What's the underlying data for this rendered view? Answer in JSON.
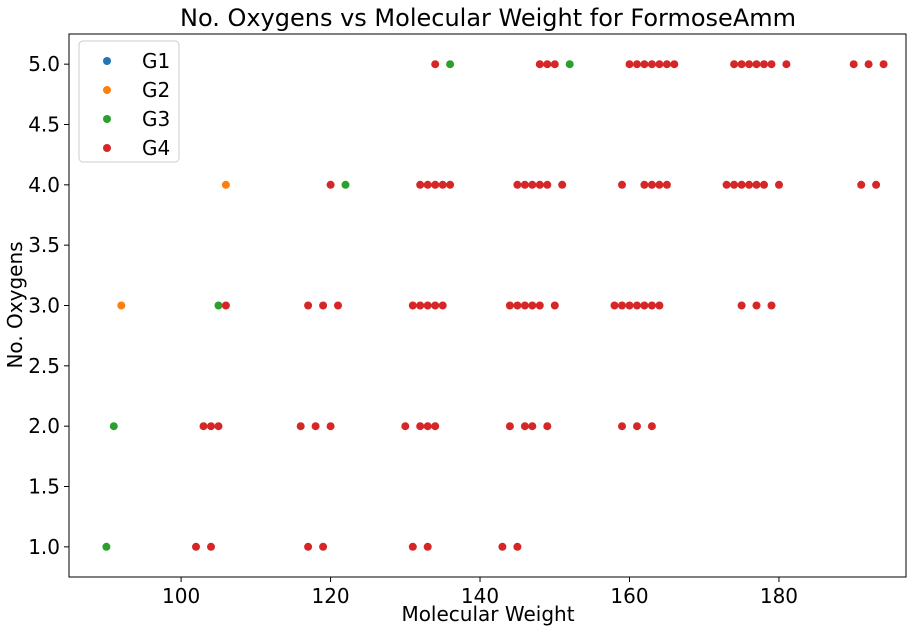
{
  "chart_data": {
    "type": "scatter",
    "title": "No. Oxygens vs Molecular Weight for FormoseAmm",
    "xlabel": "Molecular Weight",
    "ylabel": "No. Oxygens",
    "xlim": [
      85,
      197
    ],
    "ylim": [
      0.75,
      5.25
    ],
    "xticks": [
      100,
      120,
      140,
      160,
      180
    ],
    "yticks": [
      1.0,
      1.5,
      2.0,
      2.5,
      3.0,
      3.5,
      4.0,
      4.5,
      5.0
    ],
    "xtick_labels": [
      "100",
      "120",
      "140",
      "160",
      "180"
    ],
    "ytick_labels": [
      "1.0",
      "1.5",
      "2.0",
      "2.5",
      "3.0",
      "3.5",
      "4.0",
      "4.5",
      "5.0"
    ],
    "grid": false,
    "legend_position": "top-left",
    "series": [
      {
        "name": "G1",
        "color": "#1f77b4",
        "x": [],
        "y": []
      },
      {
        "name": "G2",
        "color": "#ff7f0e",
        "x": [
          92,
          106
        ],
        "y": [
          3,
          4
        ]
      },
      {
        "name": "G3",
        "color": "#2ca02c",
        "x": [
          90,
          91,
          105,
          122,
          136,
          152
        ],
        "y": [
          1,
          2,
          3,
          4,
          5,
          5
        ]
      },
      {
        "name": "G4",
        "color": "#d62728",
        "x": [
          102,
          104,
          117,
          119,
          131,
          133,
          143,
          145,
          103,
          104,
          105,
          116,
          118,
          120,
          130,
          132,
          133,
          134,
          144,
          146,
          147,
          149,
          159,
          161,
          163,
          106,
          117,
          119,
          121,
          131,
          132,
          133,
          134,
          135,
          144,
          145,
          146,
          147,
          148,
          150,
          158,
          159,
          160,
          161,
          162,
          163,
          164,
          175,
          177,
          179,
          120,
          132,
          133,
          134,
          135,
          136,
          145,
          146,
          147,
          148,
          149,
          151,
          159,
          162,
          163,
          164,
          165,
          173,
          174,
          175,
          176,
          177,
          178,
          180,
          191,
          193,
          134,
          148,
          149,
          150,
          160,
          161,
          162,
          163,
          164,
          165,
          166,
          174,
          175,
          176,
          177,
          178,
          179,
          181,
          190,
          192,
          194
        ],
        "y": [
          1,
          1,
          1,
          1,
          1,
          1,
          1,
          1,
          2,
          2,
          2,
          2,
          2,
          2,
          2,
          2,
          2,
          2,
          2,
          2,
          2,
          2,
          2,
          2,
          2,
          3,
          3,
          3,
          3,
          3,
          3,
          3,
          3,
          3,
          3,
          3,
          3,
          3,
          3,
          3,
          3,
          3,
          3,
          3,
          3,
          3,
          3,
          3,
          3,
          3,
          4,
          4,
          4,
          4,
          4,
          4,
          4,
          4,
          4,
          4,
          4,
          4,
          4,
          4,
          4,
          4,
          4,
          4,
          4,
          4,
          4,
          4,
          4,
          4,
          4,
          4,
          5,
          5,
          5,
          5,
          5,
          5,
          5,
          5,
          5,
          5,
          5,
          5,
          5,
          5,
          5,
          5,
          5,
          5,
          5,
          5,
          5
        ]
      }
    ]
  }
}
